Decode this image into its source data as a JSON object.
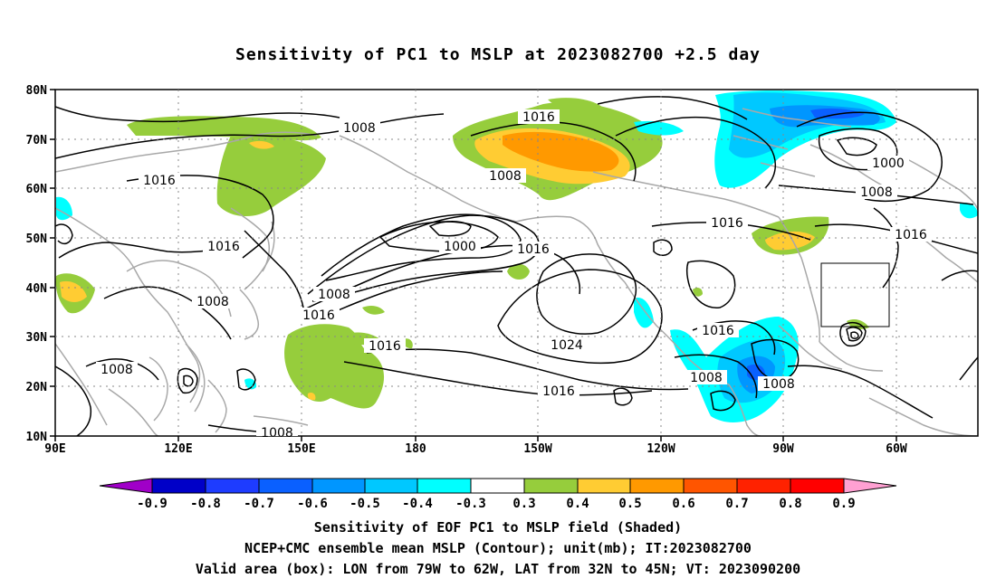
{
  "title": "Sensitivity of PC1 to MSLP at 2023082700 +2.5 day",
  "map": {
    "lat_labels": [
      "80N",
      "70N",
      "60N",
      "50N",
      "40N",
      "30N",
      "20N",
      "10N"
    ],
    "lon_labels": [
      "90E",
      "120E",
      "150E",
      "180",
      "150W",
      "120W",
      "90W",
      "60W"
    ],
    "domain": {
      "lon_range": [
        "90E",
        "30W"
      ],
      "lat_range": [
        "10N",
        "80N"
      ]
    },
    "gridlines": "dotted",
    "coastline_color": "#a8a8a8",
    "contour_labels": [
      {
        "id": "c1",
        "text": "1008"
      },
      {
        "id": "c2",
        "text": "1016"
      },
      {
        "id": "c3",
        "text": "1016"
      },
      {
        "id": "c4",
        "text": "1008"
      },
      {
        "id": "c5",
        "text": "1000"
      },
      {
        "id": "c6",
        "text": "1016"
      },
      {
        "id": "c7",
        "text": "1008"
      },
      {
        "id": "c8",
        "text": "1008"
      },
      {
        "id": "c9",
        "text": "1016"
      },
      {
        "id": "c10",
        "text": "1016"
      },
      {
        "id": "c11",
        "text": "1008"
      },
      {
        "id": "c12",
        "text": "1024"
      },
      {
        "id": "c13",
        "text": "1016"
      },
      {
        "id": "c14",
        "text": "1008"
      },
      {
        "id": "c15",
        "text": "1016"
      },
      {
        "id": "c16",
        "text": "1008"
      },
      {
        "id": "c17",
        "text": "1008"
      },
      {
        "id": "c18",
        "text": "1000"
      },
      {
        "id": "c19",
        "text": "1008"
      },
      {
        "id": "c20",
        "text": "1016"
      },
      {
        "id": "c21",
        "text": "1008"
      }
    ],
    "valid_box": {
      "lon": [
        "79W",
        "62W"
      ],
      "lat": [
        "32N",
        "45N"
      ]
    }
  },
  "colorbar": {
    "labels": [
      "-0.9",
      "-0.8",
      "-0.7",
      "-0.6",
      "-0.5",
      "-0.4",
      "-0.3",
      "0.3",
      "0.4",
      "0.5",
      "0.6",
      "0.7",
      "0.8",
      "0.9"
    ],
    "colors": [
      "#a000c8",
      "#0000c8",
      "#1e3cff",
      "#0a60ff",
      "#0096ff",
      "#00c8ff",
      "#00ffff",
      "#ffffff",
      "#96cd3c",
      "#ffcc33",
      "#ff9900",
      "#ff5500",
      "#ff2200",
      "#ff0000",
      "#ffa0d2"
    ]
  },
  "captions": {
    "line1": "Sensitivity of EOF PC1 to MSLP field (Shaded)",
    "line2": "NCEP+CMC ensemble mean MSLP (Contour); unit(mb); IT:2023082700",
    "line3": "Valid area (box): LON from 79W to 62W, LAT from 32N to 45N; VT: 2023090200"
  }
}
